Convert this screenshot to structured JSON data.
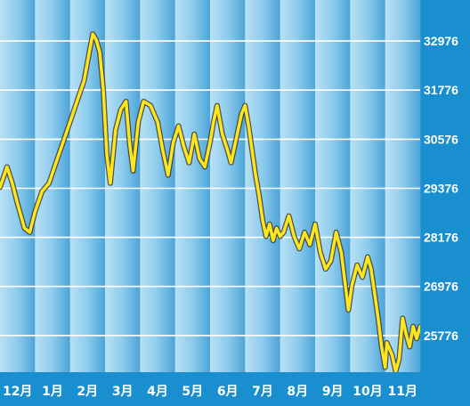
{
  "chart_data": {
    "type": "line",
    "title": "",
    "xlabel": "",
    "ylabel": "",
    "categories": [
      "12月",
      "1月",
      "2月",
      "3月",
      "4月",
      "5月",
      "6月",
      "7月",
      "8月",
      "9月",
      "10月",
      "11月"
    ],
    "yticks": [
      25776,
      26976,
      28176,
      29376,
      30576,
      31776,
      32976
    ],
    "ylim": [
      24880,
      33980
    ],
    "grid": true,
    "legend": "none",
    "series": [
      {
        "color": "#ffe61a",
        "values": [
          [
            0.0,
            29400
          ],
          [
            0.2,
            29900
          ],
          [
            0.35,
            29500
          ],
          [
            0.5,
            29000
          ],
          [
            0.7,
            28400
          ],
          [
            0.85,
            28300
          ],
          [
            1.0,
            28800
          ],
          [
            1.2,
            29300
          ],
          [
            1.4,
            29500
          ],
          [
            1.6,
            30000
          ],
          [
            1.8,
            30500
          ],
          [
            2.0,
            31000
          ],
          [
            2.2,
            31500
          ],
          [
            2.4,
            32000
          ],
          [
            2.55,
            32700
          ],
          [
            2.65,
            33150
          ],
          [
            2.75,
            33000
          ],
          [
            2.85,
            32700
          ],
          [
            2.95,
            31800
          ],
          [
            3.05,
            30200
          ],
          [
            3.15,
            29500
          ],
          [
            3.3,
            30800
          ],
          [
            3.45,
            31300
          ],
          [
            3.6,
            31500
          ],
          [
            3.7,
            30500
          ],
          [
            3.8,
            29800
          ],
          [
            3.95,
            31000
          ],
          [
            4.1,
            31500
          ],
          [
            4.3,
            31400
          ],
          [
            4.5,
            31000
          ],
          [
            4.65,
            30300
          ],
          [
            4.8,
            29700
          ],
          [
            4.95,
            30500
          ],
          [
            5.1,
            30900
          ],
          [
            5.25,
            30400
          ],
          [
            5.4,
            30000
          ],
          [
            5.55,
            30700
          ],
          [
            5.7,
            30100
          ],
          [
            5.85,
            29900
          ],
          [
            6.0,
            30500
          ],
          [
            6.1,
            31000
          ],
          [
            6.2,
            31400
          ],
          [
            6.35,
            30700
          ],
          [
            6.5,
            30300
          ],
          [
            6.6,
            30000
          ],
          [
            6.75,
            30600
          ],
          [
            6.9,
            31200
          ],
          [
            7.0,
            31400
          ],
          [
            7.1,
            30900
          ],
          [
            7.2,
            30300
          ],
          [
            7.3,
            29700
          ],
          [
            7.4,
            29200
          ],
          [
            7.5,
            28600
          ],
          [
            7.6,
            28200
          ],
          [
            7.7,
            28500
          ],
          [
            7.8,
            28100
          ],
          [
            7.9,
            28400
          ],
          [
            8.0,
            28200
          ],
          [
            8.1,
            28300
          ],
          [
            8.25,
            28700
          ],
          [
            8.4,
            28200
          ],
          [
            8.55,
            27900
          ],
          [
            8.7,
            28300
          ],
          [
            8.85,
            28000
          ],
          [
            9.0,
            28500
          ],
          [
            9.15,
            27800
          ],
          [
            9.3,
            27400
          ],
          [
            9.45,
            27600
          ],
          [
            9.6,
            28300
          ],
          [
            9.75,
            27800
          ],
          [
            9.85,
            27100
          ],
          [
            9.95,
            26400
          ],
          [
            10.05,
            27000
          ],
          [
            10.2,
            27500
          ],
          [
            10.35,
            27200
          ],
          [
            10.5,
            27700
          ],
          [
            10.6,
            27400
          ],
          [
            10.7,
            26800
          ],
          [
            10.8,
            26200
          ],
          [
            10.9,
            25500
          ],
          [
            11.0,
            25000
          ],
          [
            11.05,
            25600
          ],
          [
            11.2,
            25300
          ],
          [
            11.3,
            24900
          ],
          [
            11.4,
            25200
          ],
          [
            11.5,
            26200
          ],
          [
            11.6,
            25800
          ],
          [
            11.7,
            25500
          ],
          [
            11.8,
            26000
          ],
          [
            11.9,
            25700
          ],
          [
            12.0,
            26000
          ]
        ]
      }
    ]
  }
}
